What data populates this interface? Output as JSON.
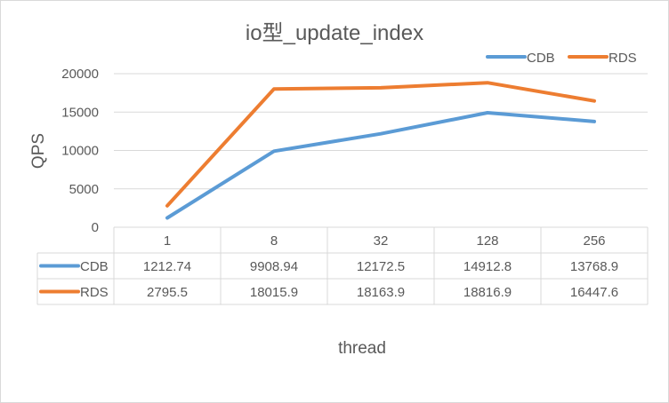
{
  "chart_data": {
    "type": "line",
    "title": "io型_update_index",
    "xlabel": "thread",
    "ylabel": "QPS",
    "categories": [
      "1",
      "8",
      "32",
      "128",
      "256"
    ],
    "ylim": [
      0,
      20000
    ],
    "yticks": [
      "0",
      "5000",
      "10000",
      "15000",
      "20000"
    ],
    "grid": true,
    "legend": "top-right",
    "data_table": true,
    "series": [
      {
        "name": "CDB",
        "color": "#5B9BD5",
        "values": [
          1212.74,
          9908.94,
          12172.5,
          14912.8,
          13768.9
        ],
        "labels": [
          "1212.74",
          "9908.94",
          "12172.5",
          "14912.8",
          "13768.9"
        ]
      },
      {
        "name": "RDS",
        "color": "#ED7D31",
        "values": [
          2795.5,
          18015.9,
          18163.9,
          18816.9,
          16447.6
        ],
        "labels": [
          "2795.5",
          "18015.9",
          "18163.9",
          "18816.9",
          "16447.6"
        ]
      }
    ]
  }
}
